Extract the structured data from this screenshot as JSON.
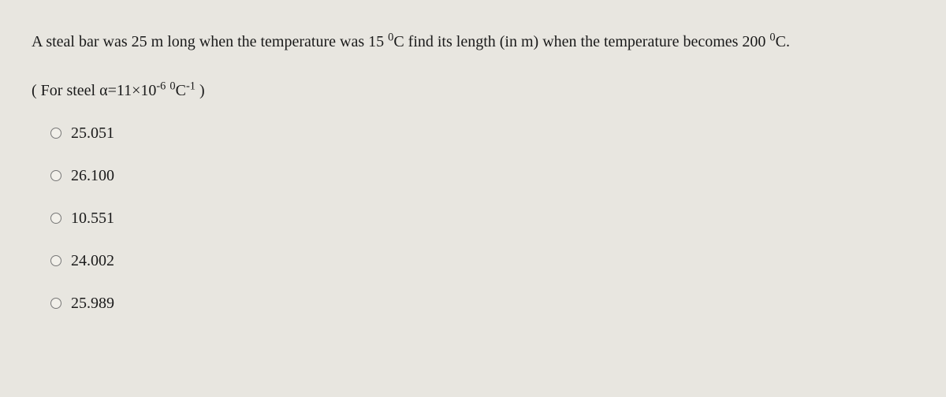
{
  "question": {
    "line1_parts": [
      "A steal bar was 25 m long when the temperature was 15 ",
      "C find its length (in m) when the temperature becomes 200 ",
      "C."
    ],
    "line2_parts": [
      "( For steel α=11×10",
      " ",
      "C",
      " )"
    ]
  },
  "options": [
    {
      "value": "25.051"
    },
    {
      "value": "26.100"
    },
    {
      "value": "10.551"
    },
    {
      "value": "24.002"
    },
    {
      "value": "25.989"
    }
  ],
  "colors": {
    "background": "#e8e6e0",
    "text": "#1a1a1a",
    "radio_border": "#777"
  },
  "font": {
    "family": "Times New Roman, serif",
    "size_pt": 20
  }
}
